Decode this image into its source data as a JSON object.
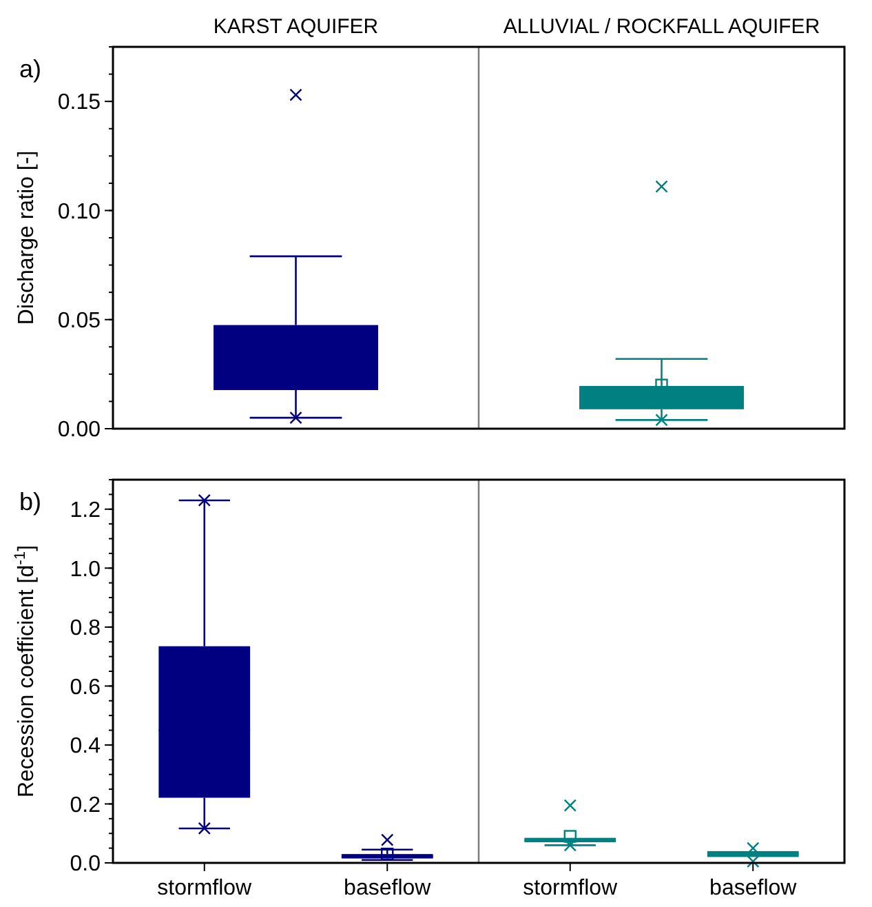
{
  "chart_data": [
    {
      "type": "box",
      "ylabel": "Discharge ratio [-]",
      "annotations": [
        "a)"
      ],
      "categories": [
        "KARST AQUIFER",
        "ALLUVIAL / ROCKFALL  AQUIFER"
      ],
      "colors": [
        "#000080",
        "#008080"
      ],
      "ylim": [
        0,
        0.175
      ],
      "yticks": [
        {
          "value": 0,
          "label": "0.00"
        },
        {
          "value": 0.05,
          "label": "0.05"
        },
        {
          "value": 0.1,
          "label": "0.10"
        },
        {
          "value": 0.15,
          "label": "0.15"
        }
      ],
      "boxes": [
        {
          "low": 0.005,
          "q1": 0.0177,
          "median": 0.03,
          "q3": 0.0475,
          "high": 0.079,
          "outliers": [
            0.153,
            0.005
          ]
        },
        {
          "low": 0.004,
          "q1": 0.0089,
          "median": 0.014,
          "q3": 0.0196,
          "high": 0.032,
          "mean": 0.02,
          "outliers": [
            0.111,
            0.004
          ]
        }
      ]
    },
    {
      "type": "box",
      "ylabel": "Recession coefficient [d$^{-1}$]",
      "annotations": [
        "b)"
      ],
      "categories": [
        "stormflow",
        "baseflow",
        "stormflow",
        "baseflow"
      ],
      "colors": [
        "#000080",
        "#000080",
        "#008080",
        "#008080"
      ],
      "ylim": [
        0,
        1.3
      ],
      "yticks": [
        {
          "value": 0,
          "label": "0.0"
        },
        0.2,
        0.4,
        0.6,
        0.8,
        {
          "value": 1,
          "label": "1.0"
        },
        1.2
      ],
      "boxes": [
        {
          "low": 0.117,
          "q1": 0.221,
          "median": 0.45,
          "q3": 0.735,
          "high": 1.23,
          "outliers": [
            1.23,
            0.117
          ]
        },
        {
          "low": 0.01,
          "q1": 0.015,
          "median": 0.022,
          "q3": 0.03,
          "high": 0.045,
          "mean": 0.03,
          "outliers": [
            0.078
          ]
        },
        {
          "low": 0.06,
          "q1": 0.07,
          "median": 0.077,
          "q3": 0.085,
          "high": 0.085,
          "mean": 0.09,
          "outliers": [
            0.195,
            0.06
          ]
        },
        {
          "low": 0.02,
          "q1": 0.02,
          "median": 0.03,
          "q3": 0.04,
          "high": 0.04,
          "outliers": [
            0.05,
            0.005
          ]
        }
      ]
    }
  ]
}
